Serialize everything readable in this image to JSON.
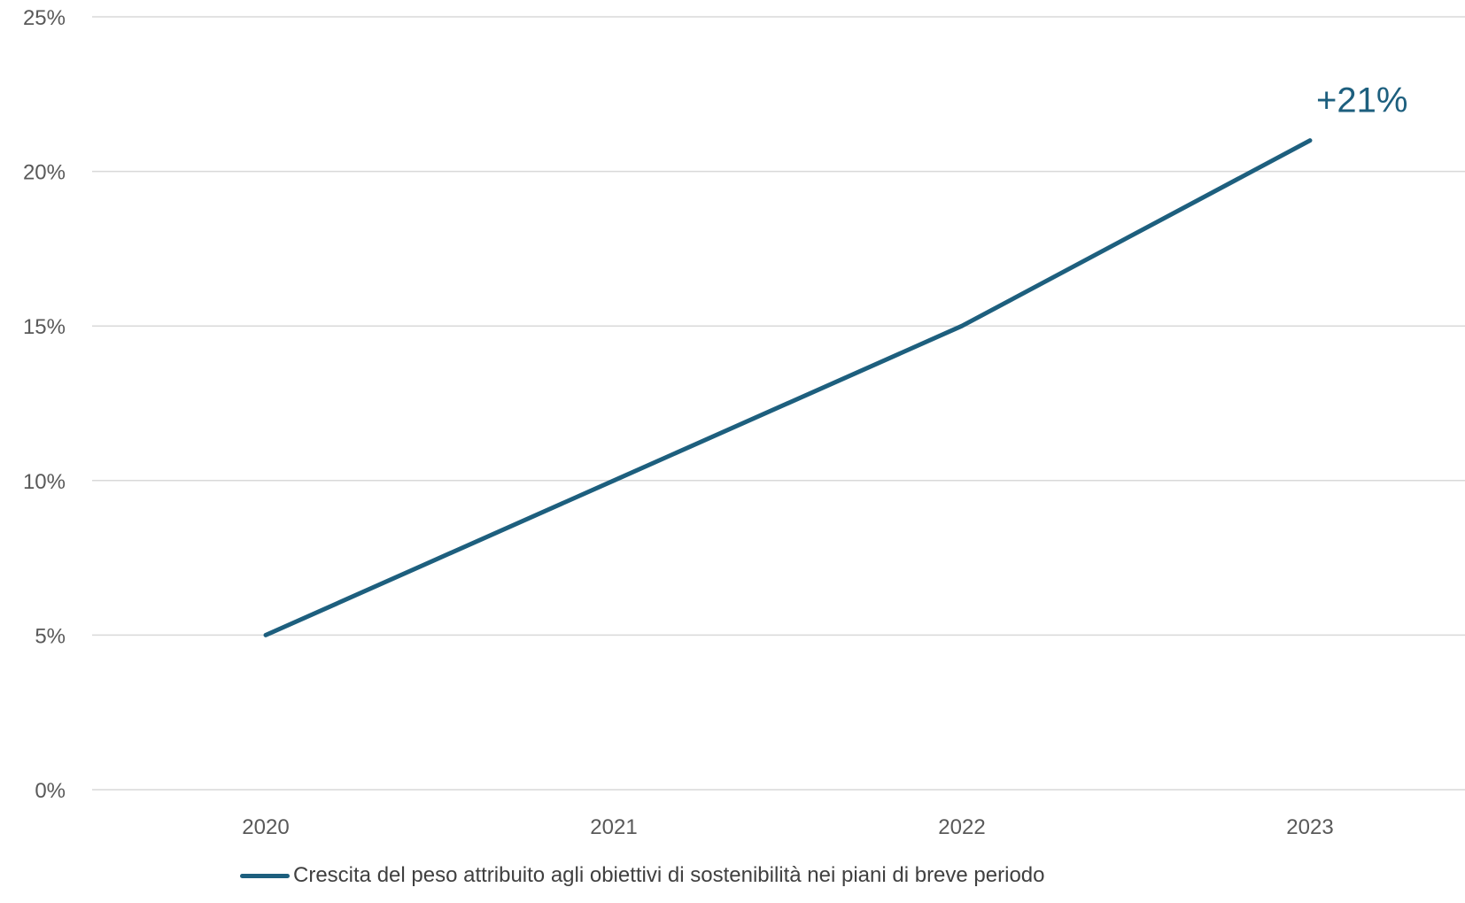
{
  "chart_data": {
    "type": "line",
    "title": "",
    "xlabel": "",
    "ylabel": "",
    "categories": [
      "2020",
      "2021",
      "2022",
      "2023"
    ],
    "series": [
      {
        "name": "Crescita del peso attribuito agli obiettivi di sostenibilità nei piani di breve periodo",
        "values": [
          5,
          10,
          15,
          21
        ],
        "color": "#1d5f7e"
      }
    ],
    "y_unit": "%",
    "ylim": [
      0,
      25
    ],
    "y_ticks": [
      0,
      5,
      10,
      15,
      20,
      25
    ],
    "y_tick_labels": [
      "0%",
      "5%",
      "10%",
      "15%",
      "20%",
      "25%"
    ],
    "grid": true,
    "legend_position": "bottom",
    "annotations": [
      {
        "category": "2023",
        "text": "+21%"
      }
    ]
  }
}
